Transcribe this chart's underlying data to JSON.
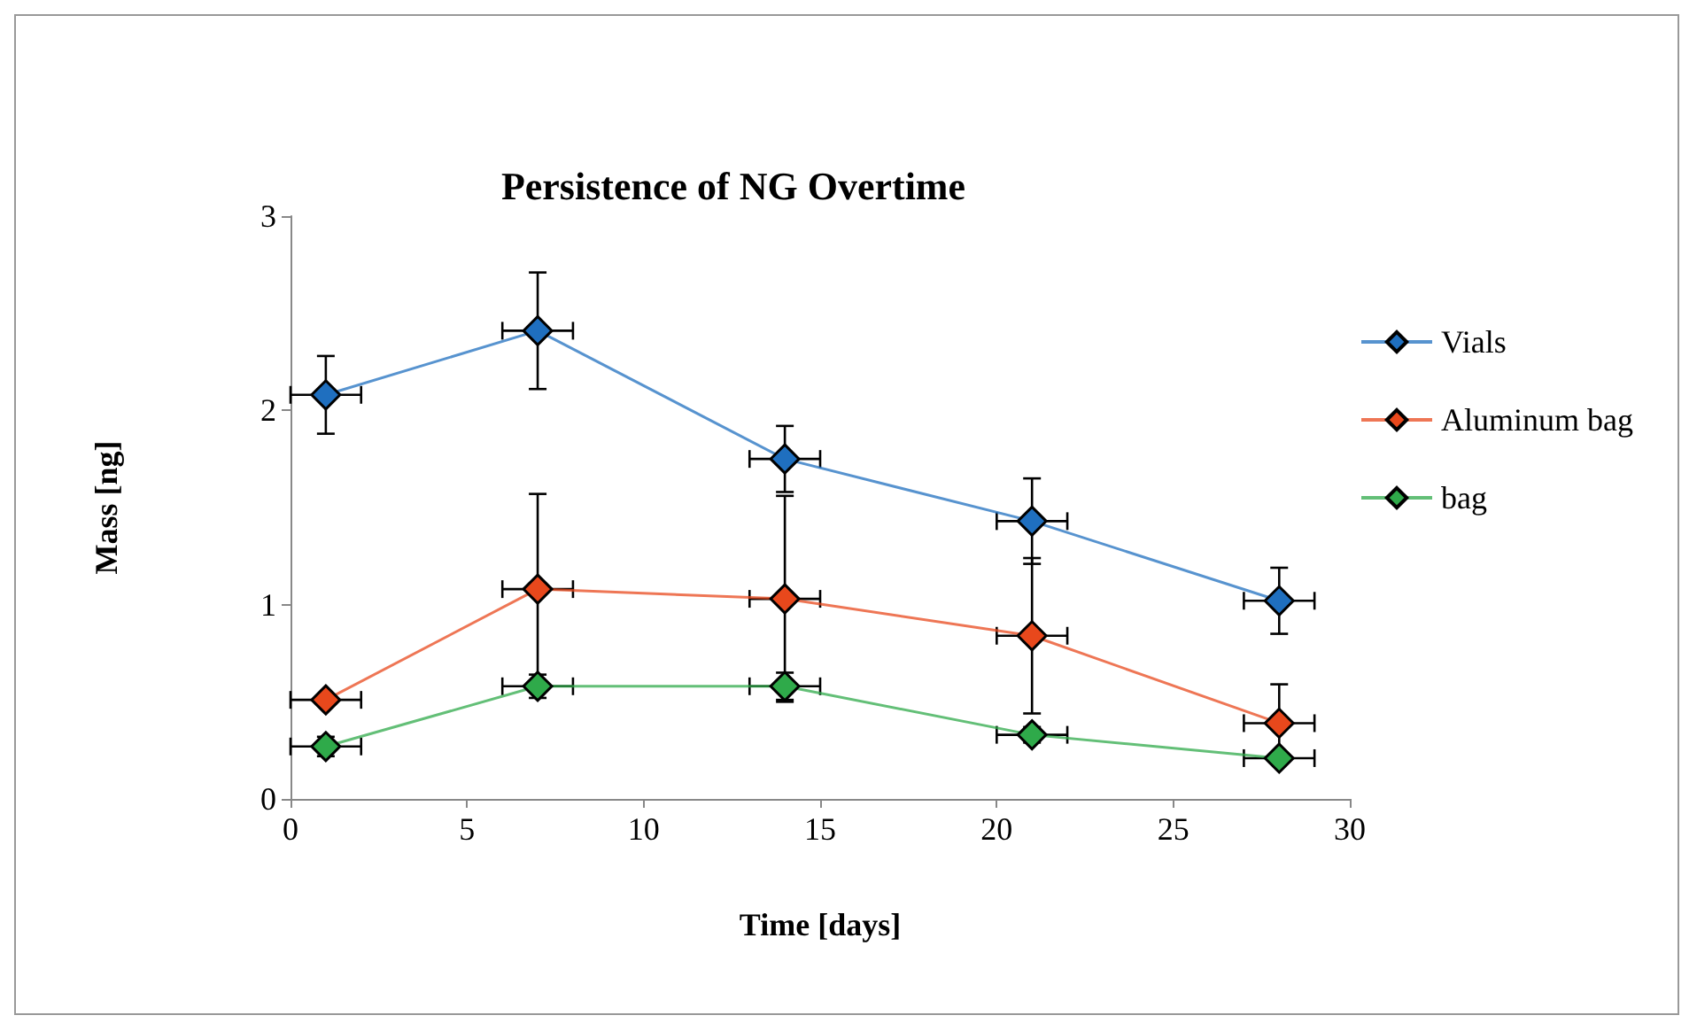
{
  "chart_data": {
    "type": "line",
    "title": "Persistence of NG Overtime",
    "xlabel": "Time [days]",
    "ylabel": "Mass [ng]",
    "x": [
      1,
      7,
      14,
      21,
      28
    ],
    "xlim": [
      0,
      30
    ],
    "xticks": [
      0,
      5,
      10,
      15,
      20,
      25,
      30
    ],
    "ylim": [
      0,
      3
    ],
    "yticks": [
      0,
      1,
      2,
      3
    ],
    "grid": false,
    "legend": "right",
    "marker": "diamond",
    "line_style": "solid",
    "series": [
      {
        "name": "Vials",
        "color": "#1f6fbf",
        "values": [
          2.08,
          2.41,
          1.75,
          1.43,
          1.02
        ],
        "errors": [
          0.2,
          0.3,
          0.17,
          0.22,
          0.17
        ],
        "xerrors": [
          1,
          1,
          1,
          1,
          1
        ]
      },
      {
        "name": "Aluminum bag",
        "color": "#e8481c",
        "values": [
          0.51,
          1.08,
          1.03,
          0.84,
          0.39
        ],
        "errors": [
          null,
          0.49,
          0.53,
          0.4,
          0.2
        ],
        "xerrors": [
          1,
          1,
          1,
          1,
          1
        ]
      },
      {
        "name": "bag",
        "color": "#2faa4a",
        "values": [
          0.27,
          0.58,
          0.58,
          0.33,
          0.21
        ],
        "errors": [
          0.05,
          0.06,
          0.07,
          0.04,
          null
        ],
        "xerrors": [
          1,
          1,
          1,
          1,
          1
        ]
      }
    ]
  }
}
